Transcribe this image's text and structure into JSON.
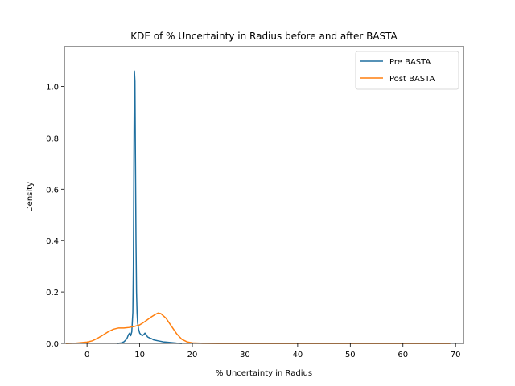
{
  "chart_data": {
    "type": "line",
    "title": "KDE of % Uncertainty in Radius before and after BASTA",
    "xlabel": "% Uncertainty in Radius",
    "ylabel": "Density",
    "xlim": [
      -4.3,
      71.5
    ],
    "ylim": [
      0.0,
      1.155
    ],
    "xticks": [
      0,
      10,
      20,
      30,
      40,
      50,
      60,
      70
    ],
    "yticks": [
      0.0,
      0.2,
      0.4,
      0.6,
      0.8,
      1.0
    ],
    "xtick_labels": [
      "0",
      "10",
      "20",
      "30",
      "40",
      "50",
      "60",
      "70"
    ],
    "ytick_labels": [
      "0.0",
      "0.2",
      "0.4",
      "0.6",
      "0.8",
      "1.0"
    ],
    "grid": false,
    "legend_position": "top-right",
    "series": [
      {
        "name": "Pre BASTA",
        "color": "#1f6f9f",
        "x": [
          5.8,
          6.5,
          7.0,
          7.3,
          7.6,
          7.9,
          8.1,
          8.3,
          8.5,
          8.7,
          8.8,
          8.9,
          9.0,
          9.1,
          9.2,
          9.3,
          9.4,
          9.5,
          9.6,
          9.8,
          10.0,
          10.2,
          10.5,
          10.8,
          11.0,
          11.2,
          11.5,
          11.8,
          12.0,
          12.3,
          12.6,
          13.0,
          13.5,
          14.0,
          14.5,
          15.0,
          16.0,
          17.0,
          18.0
        ],
        "y": [
          0.0,
          0.002,
          0.006,
          0.012,
          0.02,
          0.035,
          0.04,
          0.03,
          0.045,
          0.12,
          0.3,
          0.7,
          1.06,
          1.02,
          0.7,
          0.4,
          0.2,
          0.12,
          0.08,
          0.055,
          0.04,
          0.035,
          0.03,
          0.035,
          0.04,
          0.035,
          0.025,
          0.022,
          0.02,
          0.018,
          0.014,
          0.012,
          0.01,
          0.008,
          0.006,
          0.005,
          0.003,
          0.001,
          0.0
        ]
      },
      {
        "name": "Post BASTA",
        "color": "#ff7f0e",
        "x": [
          -4.0,
          -2.0,
          0.0,
          1.0,
          2.0,
          3.0,
          4.0,
          5.0,
          6.0,
          7.0,
          8.0,
          9.0,
          10.0,
          11.0,
          12.0,
          13.0,
          13.5,
          14.0,
          15.0,
          16.0,
          17.0,
          18.0,
          19.0,
          20.0,
          22.0,
          25.0,
          30.0,
          40.0,
          50.0,
          60.0,
          69.0
        ],
        "y": [
          0.0,
          0.001,
          0.005,
          0.01,
          0.02,
          0.032,
          0.045,
          0.055,
          0.06,
          0.06,
          0.062,
          0.066,
          0.072,
          0.085,
          0.1,
          0.113,
          0.118,
          0.116,
          0.098,
          0.068,
          0.038,
          0.016,
          0.006,
          0.002,
          0.0005,
          0.0,
          0.0,
          0.0,
          0.0,
          0.0,
          0.0
        ]
      }
    ]
  }
}
